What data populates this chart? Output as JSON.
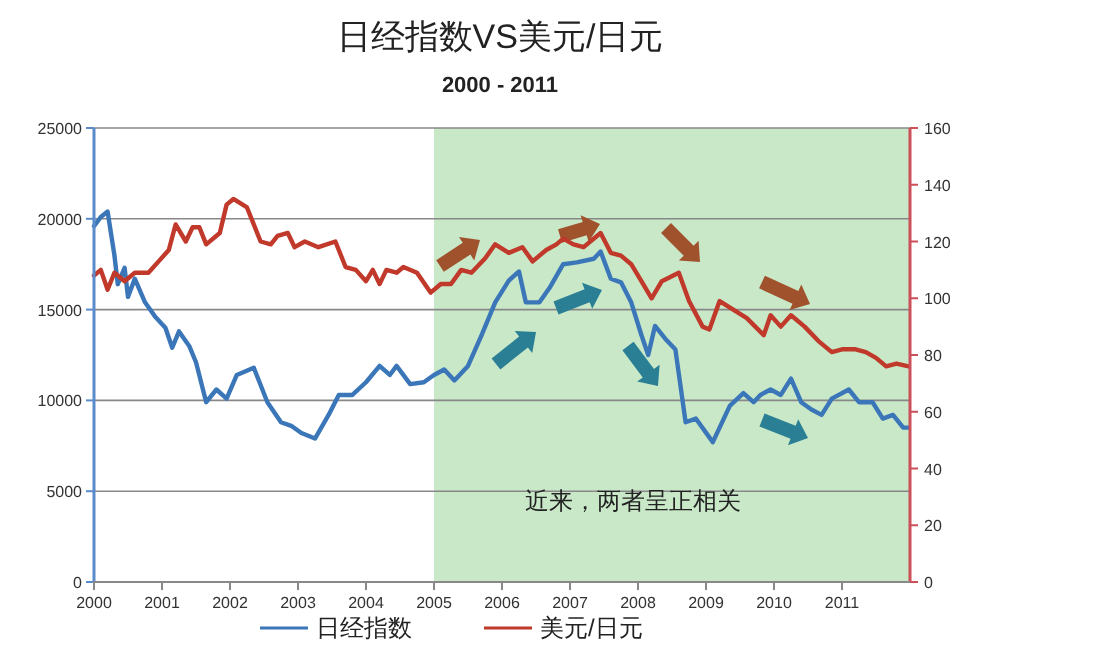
{
  "chart_data": {
    "type": "line",
    "title": "日经指数VS美元/日元",
    "subtitle": "2000 - 2011",
    "xlim": [
      2000,
      2012
    ],
    "xticks": [
      2000,
      2001,
      2002,
      2003,
      2004,
      2005,
      2006,
      2007,
      2008,
      2009,
      2010,
      2011
    ],
    "ylim": [
      0,
      25000
    ],
    "yticks": [
      0,
      5000,
      10000,
      15000,
      20000,
      25000
    ],
    "y2lim": [
      0,
      160
    ],
    "y2ticks": [
      0,
      20,
      40,
      60,
      80,
      100,
      120,
      140,
      160
    ],
    "grid": "y",
    "legend": "bottom",
    "marker": "none",
    "line_style": "solid",
    "bands": [
      {
        "axis": "x",
        "from": 2005,
        "to": 2012,
        "color": "#c8e8c8"
      }
    ],
    "annotations": [
      "近来，两者呈正相关"
    ],
    "series": [
      {
        "name": "日经指数",
        "color": "#3b76b8",
        "x": [
          2000.0,
          2000.1,
          2000.2,
          2000.3,
          2000.35,
          2000.45,
          2000.5,
          2000.6,
          2000.75,
          2000.9,
          2001.05,
          2001.15,
          2001.25,
          2001.4,
          2001.5,
          2001.65,
          2001.8,
          2001.95,
          2002.1,
          2002.35,
          2002.55,
          2002.75,
          2002.9,
          2003.05,
          2003.25,
          2003.45,
          2003.6,
          2003.8,
          2004.0,
          2004.2,
          2004.35,
          2004.45,
          2004.65,
          2004.85,
          2005.0,
          2005.15,
          2005.3,
          2005.5,
          2005.7,
          2005.9,
          2006.1,
          2006.25,
          2006.35,
          2006.55,
          2006.7,
          2006.9,
          2007.1,
          2007.35,
          2007.45,
          2007.6,
          2007.75,
          2007.9,
          2008.05,
          2008.15,
          2008.25,
          2008.4,
          2008.55,
          2008.7,
          2008.85,
          2009.1,
          2009.35,
          2009.55,
          2009.7,
          2009.8,
          2009.95,
          2010.1,
          2010.25,
          2010.4,
          2010.55,
          2010.7,
          2010.85,
          2011.1,
          2011.25,
          2011.45,
          2011.6,
          2011.75,
          2011.9,
          2011.98
        ],
        "values": [
          19600,
          20100,
          20400,
          18000,
          16400,
          17300,
          15700,
          16700,
          15400,
          14600,
          14000,
          12900,
          13800,
          13000,
          12100,
          9900,
          10600,
          10100,
          11400,
          11800,
          9900,
          8800,
          8600,
          8200,
          7900,
          9200,
          10300,
          10300,
          11000,
          11900,
          11400,
          11900,
          10900,
          11000,
          11400,
          11700,
          11100,
          11900,
          13600,
          15400,
          16600,
          17100,
          15400,
          15400,
          16200,
          17500,
          17600,
          17800,
          18200,
          16700,
          16500,
          15400,
          13600,
          12500,
          14100,
          13400,
          12800,
          8800,
          9000,
          7700,
          9700,
          10400,
          9900,
          10300,
          10600,
          10300,
          11200,
          9900,
          9500,
          9200,
          10100,
          10600,
          9900,
          9900,
          9000,
          9200,
          8500,
          8500
        ]
      },
      {
        "name": "美元/日元",
        "color": "#c0392b",
        "axis": "y2",
        "x": [
          2000.0,
          2000.1,
          2000.2,
          2000.3,
          2000.45,
          2000.6,
          2000.8,
          2000.95,
          2001.1,
          2001.2,
          2001.35,
          2001.45,
          2001.55,
          2001.65,
          2001.85,
          2001.95,
          2002.05,
          2002.25,
          2002.45,
          2002.6,
          2002.7,
          2002.85,
          2002.95,
          2003.1,
          2003.3,
          2003.55,
          2003.7,
          2003.85,
          2004.0,
          2004.1,
          2004.2,
          2004.3,
          2004.45,
          2004.55,
          2004.75,
          2004.95,
          2005.1,
          2005.25,
          2005.4,
          2005.55,
          2005.75,
          2005.9,
          2006.1,
          2006.3,
          2006.45,
          2006.65,
          2006.8,
          2006.9,
          2007.05,
          2007.2,
          2007.45,
          2007.6,
          2007.75,
          2007.9,
          2008.05,
          2008.2,
          2008.35,
          2008.6,
          2008.75,
          2008.95,
          2009.05,
          2009.2,
          2009.4,
          2009.6,
          2009.85,
          2009.95,
          2010.1,
          2010.25,
          2010.45,
          2010.65,
          2010.85,
          2011.0,
          2011.2,
          2011.35,
          2011.5,
          2011.65,
          2011.8,
          2011.98
        ],
        "values": [
          108,
          110,
          103,
          109,
          106,
          109,
          109,
          113,
          117,
          126,
          120,
          125,
          125,
          119,
          123,
          133,
          135,
          132,
          120,
          119,
          122,
          123,
          118,
          120,
          118,
          120,
          111,
          110,
          106,
          110,
          105,
          110,
          109,
          111,
          109,
          102,
          105,
          105,
          110,
          109,
          114,
          119,
          116,
          118,
          113,
          117,
          119,
          121,
          119,
          118,
          123,
          116,
          115,
          112,
          106,
          100,
          106,
          109,
          99,
          90,
          89,
          99,
          96,
          93,
          87,
          94,
          90,
          94,
          90,
          85,
          81,
          82,
          82,
          81,
          79,
          76,
          77,
          76
        ]
      }
    ]
  }
}
